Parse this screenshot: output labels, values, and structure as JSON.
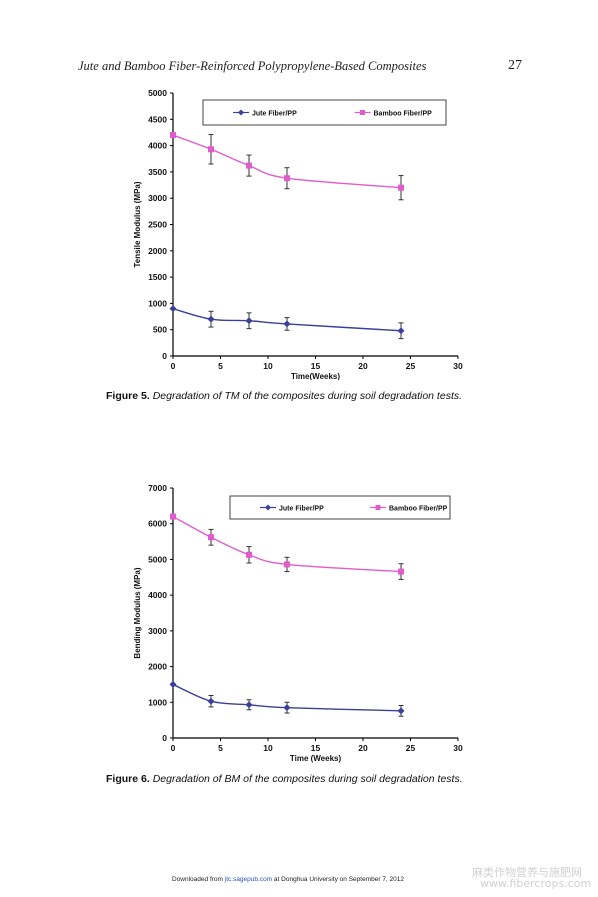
{
  "header": {
    "title": "Jute and Bamboo Fiber-Reinforced Polypropylene-Based Composites",
    "page_number": "27"
  },
  "figure5": {
    "label": "Figure 5.",
    "text": "Degradation of TM of the composites during soil degradation tests."
  },
  "figure6": {
    "label": "Figure 6.",
    "text": "Degradation of BM of the composites during soil degradation tests."
  },
  "footer": {
    "prefix": "Downloaded from",
    "link": "jtc.sagepub.com",
    "suffix": "at Donghua University on September 7, 2012"
  },
  "watermark": {
    "cn": "麻类作物营养与施肥网",
    "url": "www.fibercrops.com"
  },
  "chart_data": [
    {
      "type": "line",
      "xlabel": "Time(Weeks)",
      "ylabel": "Tensile Modulus (MPa)",
      "xlim": [
        0,
        30
      ],
      "ylim": [
        0,
        5000
      ],
      "xticks": [
        0,
        5,
        10,
        15,
        20,
        25,
        30
      ],
      "yticks": [
        0,
        500,
        1000,
        1500,
        2000,
        2500,
        3000,
        3500,
        4000,
        4500,
        5000
      ],
      "grid": false,
      "legend": "top",
      "x": [
        0,
        4,
        8,
        12,
        24
      ],
      "series": [
        {
          "name": "Jute Fiber/PP",
          "color": "#3a3f9a",
          "marker": "diamond",
          "values": [
            900,
            700,
            670,
            610,
            480
          ],
          "error": [
            0,
            150,
            150,
            120,
            150
          ]
        },
        {
          "name": "Bamboo Fiber/PP",
          "color": "#e05ccc",
          "marker": "square",
          "values": [
            4200,
            3930,
            3620,
            3380,
            3200
          ],
          "error": [
            0,
            280,
            200,
            200,
            230
          ]
        }
      ]
    },
    {
      "type": "line",
      "xlabel": "Time (Weeks)",
      "ylabel": "Bending Modulus (MPa)",
      "xlim": [
        0,
        30
      ],
      "ylim": [
        0,
        7000
      ],
      "xticks": [
        0,
        5,
        10,
        15,
        20,
        25,
        30
      ],
      "yticks": [
        0,
        1000,
        2000,
        3000,
        4000,
        5000,
        6000,
        7000
      ],
      "grid": false,
      "legend": "top",
      "x": [
        0,
        4,
        8,
        12,
        24
      ],
      "series": [
        {
          "name": "Jute Fiber/PP",
          "color": "#3a3f9a",
          "marker": "diamond",
          "values": [
            1500,
            1030,
            930,
            850,
            760
          ],
          "error": [
            0,
            160,
            140,
            150,
            150
          ]
        },
        {
          "name": "Bamboo Fiber/PP",
          "color": "#e05ccc",
          "marker": "square",
          "values": [
            6200,
            5620,
            5130,
            4860,
            4660
          ],
          "error": [
            0,
            220,
            230,
            200,
            220
          ]
        }
      ]
    }
  ]
}
